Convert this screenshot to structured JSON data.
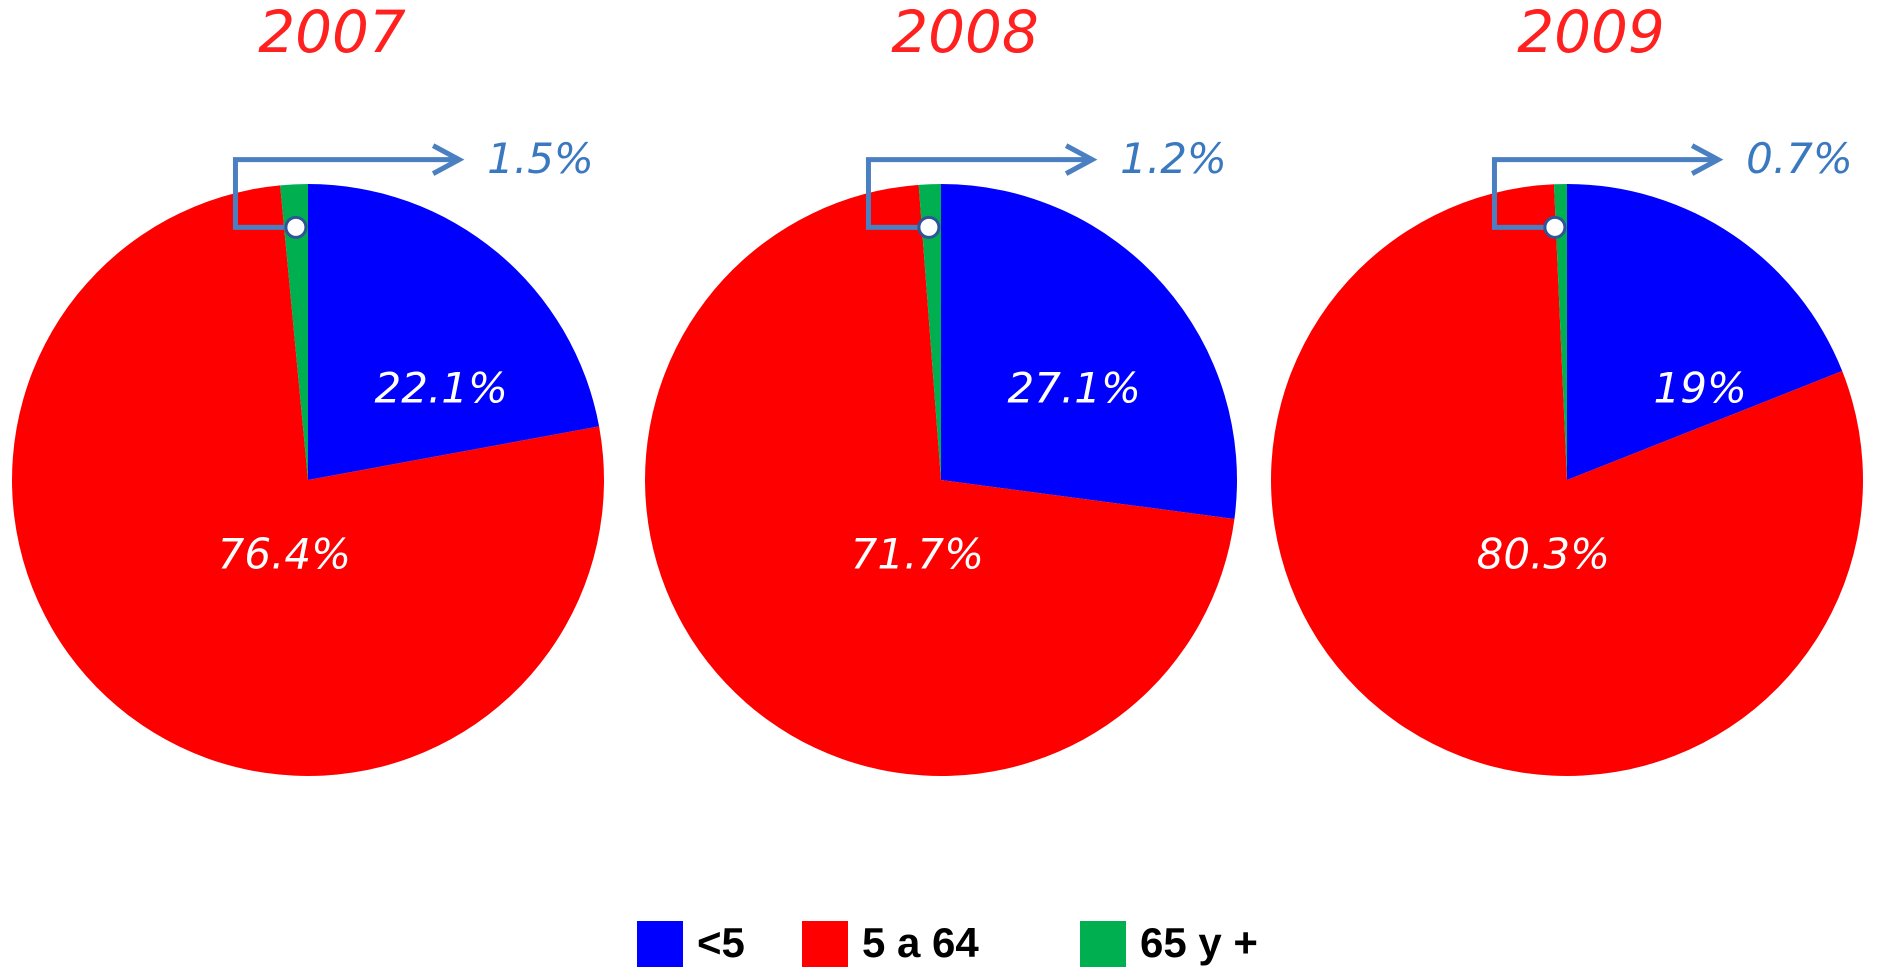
{
  "chart_data": [
    {
      "type": "pie",
      "title": "2007",
      "categories": [
        "<5",
        "5 a 64",
        "65 y +"
      ],
      "values": [
        22.1,
        76.4,
        1.5
      ],
      "value_labels": [
        "22.1%",
        "76.4%",
        "1.5%"
      ],
      "colors": [
        "#0000ff",
        "#ff0000",
        "#00b050"
      ]
    },
    {
      "type": "pie",
      "title": "2008",
      "categories": [
        "<5",
        "5 a 64",
        "65 y +"
      ],
      "values": [
        27.1,
        71.7,
        1.2
      ],
      "value_labels": [
        "27.1%",
        "71.7%",
        "1.2%"
      ],
      "colors": [
        "#0000ff",
        "#ff0000",
        "#00b050"
      ]
    },
    {
      "type": "pie",
      "title": "2009",
      "categories": [
        "<5",
        "5 a 64",
        "65 y +"
      ],
      "values": [
        19,
        80.3,
        0.7
      ],
      "value_labels": [
        "19%",
        "80.3%",
        "0.7%"
      ],
      "colors": [
        "#0000ff",
        "#ff0000",
        "#00b050"
      ]
    }
  ]
}
